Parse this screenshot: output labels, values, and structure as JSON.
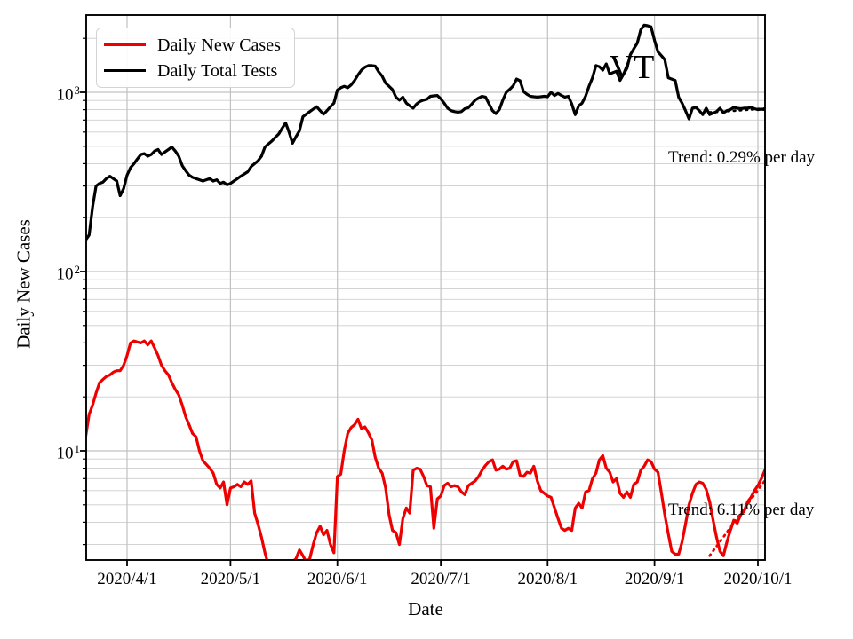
{
  "figure": {
    "region_label": "VT",
    "x_axis": {
      "label": "Date",
      "ticks": [
        {
          "label": "2020/4/1",
          "day": 12
        },
        {
          "label": "2020/5/1",
          "day": 42
        },
        {
          "label": "2020/6/1",
          "day": 73
        },
        {
          "label": "2020/7/1",
          "day": 103
        },
        {
          "label": "2020/8/1",
          "day": 134
        },
        {
          "label": "2020/9/1",
          "day": 165
        },
        {
          "label": "2020/10/1",
          "day": 195
        }
      ]
    },
    "y_axis": {
      "label": "Daily New Cases",
      "ticks": [
        {
          "value": 1000,
          "base": "10",
          "exp": "3"
        },
        {
          "value": 100,
          "base": "10",
          "exp": "2"
        },
        {
          "value": 10,
          "base": "10",
          "exp": "1"
        }
      ]
    },
    "legend": [
      {
        "label": "Daily New Cases",
        "color": "#ee0000"
      },
      {
        "label": "Daily Total Tests",
        "color": "#000000"
      }
    ],
    "annotations": [
      {
        "text": "Trend: 0.29% per day",
        "series": "Daily Total Tests"
      },
      {
        "text": "Trend: 6.11% per day",
        "series": "Daily New Cases"
      }
    ]
  },
  "chart_data": {
    "type": "line",
    "title": "VT",
    "xlabel": "Date",
    "ylabel": "Daily New Cases",
    "y_scale": "log",
    "ylim": [
      2.45,
      2690
    ],
    "xlim_days": [
      0,
      197.2
    ],
    "x_start_date": "2020/3/20",
    "grid": "both",
    "legend_position": "upper left",
    "series": [
      {
        "name": "Daily New Cases",
        "color": "#ee0000",
        "style": "solid",
        "width": 3.2,
        "start_day": 0,
        "values": [
          12,
          16,
          18,
          21,
          24,
          25,
          26,
          26.5,
          27.5,
          28,
          28,
          30,
          34,
          40,
          41,
          40.5,
          40,
          41,
          39,
          41,
          37.5,
          34,
          30,
          28,
          26.5,
          24,
          22,
          20.5,
          18,
          15.5,
          14,
          12.5,
          12,
          10,
          8.8,
          8.4,
          8,
          7.5,
          6.5,
          6.2,
          6.7,
          5,
          6.2,
          6.3,
          6.5,
          6.3,
          6.7,
          6.5,
          6.8,
          4.5,
          3.9,
          3.3,
          2.7,
          2.3,
          2.2,
          2.1,
          2.1,
          2.2,
          2.2,
          2.3,
          2.4,
          2.5,
          2.8,
          2.6,
          2.4,
          2.5,
          3,
          3.5,
          3.8,
          3.4,
          3.6,
          3,
          2.7,
          7.2,
          7.4,
          10,
          12.5,
          13.5,
          14,
          15,
          13.3,
          13.6,
          12.6,
          11.5,
          9.2,
          8,
          7.5,
          6.2,
          4.4,
          3.6,
          3.5,
          3,
          4.2,
          4.8,
          4.5,
          7.8,
          8,
          7.9,
          7.2,
          6.4,
          6.3,
          3.7,
          5.4,
          5.6,
          6.4,
          6.6,
          6.3,
          6.4,
          6.3,
          5.9,
          5.7,
          6.4,
          6.6,
          6.8,
          7.2,
          7.8,
          8.3,
          8.7,
          8.9,
          7.8,
          7.9,
          8.2,
          7.9,
          8,
          8.7,
          8.8,
          7.3,
          7.2,
          7.6,
          7.5,
          8.2,
          6.8,
          6,
          5.8,
          5.6,
          5.5,
          4.8,
          4.2,
          3.7,
          3.6,
          3.7,
          3.6,
          4.8,
          5.1,
          4.8,
          5.9,
          6,
          7,
          7.5,
          8.9,
          9.4,
          8,
          7.6,
          6.7,
          7,
          5.8,
          5.5,
          5.9,
          5.5,
          6.5,
          6.7,
          7.8,
          8.2,
          8.9,
          8.7,
          7.9,
          7.6,
          5.8,
          4.4,
          3.45,
          2.75,
          2.65,
          2.65,
          3.1,
          3.9,
          5,
          5.8,
          6.5,
          6.7,
          6.6,
          6.1,
          5.2,
          4.1,
          3.3,
          2.75,
          2.6,
          3.1,
          3.6,
          4.1,
          3.95,
          4.4,
          4.6,
          5.2,
          5.5,
          6,
          6.4,
          7,
          7.8
        ]
      },
      {
        "name": "Daily Total Tests",
        "color": "#000000",
        "style": "solid",
        "width": 3.2,
        "start_day": 0,
        "values": [
          150,
          160,
          230,
          300,
          310,
          315,
          330,
          340,
          330,
          320,
          265,
          290,
          345,
          380,
          400,
          425,
          450,
          455,
          440,
          450,
          470,
          480,
          450,
          465,
          480,
          495,
          470,
          440,
          390,
          365,
          345,
          335,
          330,
          325,
          320,
          325,
          330,
          320,
          325,
          310,
          315,
          305,
          310,
          320,
          330,
          340,
          350,
          360,
          385,
          400,
          415,
          440,
          495,
          515,
          535,
          560,
          585,
          630,
          675,
          600,
          520,
          565,
          610,
          730,
          755,
          780,
          805,
          830,
          790,
          755,
          790,
          830,
          870,
          1030,
          1060,
          1080,
          1060,
          1100,
          1165,
          1250,
          1330,
          1380,
          1410,
          1410,
          1400,
          1300,
          1230,
          1125,
          1080,
          1035,
          940,
          905,
          940,
          870,
          840,
          815,
          860,
          890,
          905,
          915,
          950,
          955,
          960,
          920,
          870,
          815,
          790,
          780,
          775,
          780,
          810,
          820,
          860,
          905,
          930,
          950,
          940,
          860,
          790,
          760,
          800,
          905,
          1000,
          1040,
          1085,
          1185,
          1160,
          1010,
          975,
          950,
          945,
          940,
          945,
          950,
          945,
          1000,
          960,
          985,
          960,
          940,
          950,
          860,
          750,
          840,
          870,
          950,
          1080,
          1205,
          1410,
          1390,
          1330,
          1440,
          1265,
          1290,
          1310,
          1165,
          1260,
          1360,
          1620,
          1750,
          1880,
          2230,
          2370,
          2350,
          2320,
          1950,
          1680,
          1600,
          1520,
          1205,
          1185,
          1165,
          938,
          870,
          790,
          710,
          815,
          825,
          790,
          750,
          815,
          750,
          765,
          780,
          815,
          768,
          790,
          800,
          825,
          815,
          810,
          815,
          815,
          825,
          810,
          800,
          805,
          800
        ]
      },
      {
        "name": "Daily New Cases trend",
        "color": "#ee0000",
        "style": "dotted",
        "width": 2.8,
        "trend": {
          "start_day": 181,
          "end_day": 197.2,
          "from": 2.6,
          "to": 6.9,
          "rate_text": "6.11% per day"
        }
      },
      {
        "name": "Daily Total Tests trend",
        "color": "#000000",
        "style": "dotted",
        "width": 2.8,
        "trend": {
          "start_day": 181,
          "end_day": 197.2,
          "from": 772,
          "to": 812,
          "rate_text": "0.29% per day"
        }
      }
    ]
  }
}
